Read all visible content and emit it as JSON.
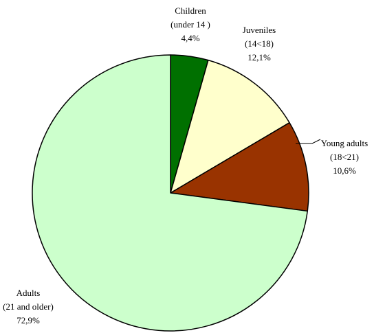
{
  "chart_data": {
    "type": "pie",
    "title": "",
    "colors_note": "per-slice fill colors",
    "slices": [
      {
        "name": "Children",
        "label_lines": [
          "Children",
          "(under 14 )",
          "4,4%"
        ],
        "value": 4.4,
        "color": "#007000"
      },
      {
        "name": "Juveniles",
        "label_lines": [
          "Juveniles",
          "(14<18)",
          "12,1%"
        ],
        "value": 12.1,
        "color": "#ffffcc"
      },
      {
        "name": "Young adults",
        "label_lines": [
          "Young adults",
          "(18<21)",
          "10,6%"
        ],
        "value": 10.6,
        "color": "#993300"
      },
      {
        "name": "Adults",
        "label_lines": [
          "Adults",
          "(21 and older)",
          "72,9%"
        ],
        "value": 72.9,
        "color": "#ccffcc"
      }
    ]
  }
}
